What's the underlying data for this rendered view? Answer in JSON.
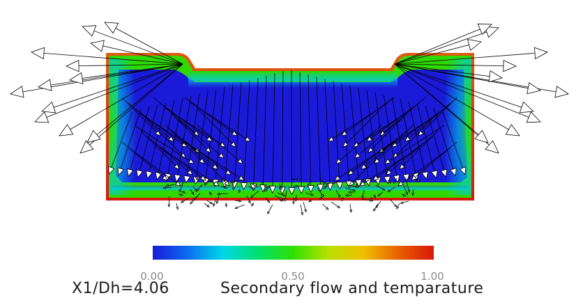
{
  "caption": {
    "station": "X1/Dh=4.06",
    "title": "Secondary flow and temparature"
  },
  "colorbar": {
    "ticks": [
      "0.00",
      "0.50",
      "1.00"
    ],
    "stops": [
      "#1a1ad8",
      "#0a6cf0",
      "#00d8e8",
      "#00e070",
      "#30e000",
      "#b8e000",
      "#f0c000",
      "#e86000",
      "#d81808"
    ]
  },
  "field": {
    "wall_color": "#d81808",
    "near_wall_color": "#30d800",
    "core_color": "#1a1ad8",
    "arrow_color": "#000000"
  }
}
